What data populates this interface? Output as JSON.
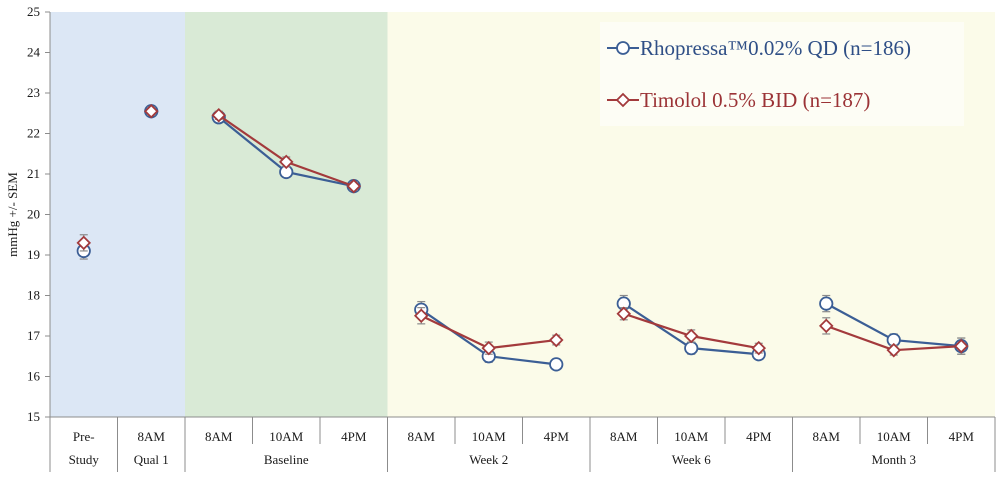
{
  "chart_data": {
    "type": "line",
    "ylabel": "mmHg +/- SEM",
    "ylim": [
      15,
      25
    ],
    "yticks": [
      15,
      16,
      17,
      18,
      19,
      20,
      21,
      22,
      23,
      24,
      25
    ],
    "categories": [
      "Pre-Study",
      "8AM",
      "8AM",
      "10AM",
      "4PM",
      "8AM",
      "10AM",
      "4PM",
      "8AM",
      "10AM",
      "4PM",
      "8AM",
      "10AM",
      "4PM"
    ],
    "tick_labels": [
      {
        "lines": [
          "Pre-",
          "Study"
        ]
      },
      {
        "lines": [
          "8AM",
          "Qual 1"
        ]
      },
      {
        "lines": [
          "8AM"
        ]
      },
      {
        "lines": [
          "10AM"
        ]
      },
      {
        "lines": [
          "4PM"
        ]
      },
      {
        "lines": [
          "8AM"
        ]
      },
      {
        "lines": [
          "10AM"
        ]
      },
      {
        "lines": [
          "4PM"
        ]
      },
      {
        "lines": [
          "8AM"
        ]
      },
      {
        "lines": [
          "10AM"
        ]
      },
      {
        "lines": [
          "4PM"
        ]
      },
      {
        "lines": [
          "8AM"
        ]
      },
      {
        "lines": [
          "10AM"
        ]
      },
      {
        "lines": [
          "4PM"
        ]
      }
    ],
    "groups": [
      {
        "label": "Baseline",
        "start": 2,
        "end": 4
      },
      {
        "label": "Week 2",
        "start": 5,
        "end": 7
      },
      {
        "label": "Week 6",
        "start": 8,
        "end": 10
      },
      {
        "label": "Month 3",
        "start": 11,
        "end": 13
      }
    ],
    "bands": [
      {
        "start": 0,
        "end": 1,
        "color": "#dce7f5"
      },
      {
        "start": 2,
        "end": 4,
        "color": "#d9ead6"
      },
      {
        "start": 5,
        "end": 13,
        "color": "#fbfbe9"
      }
    ],
    "connected_segments": [
      [
        2,
        4
      ],
      [
        5,
        7
      ],
      [
        8,
        10
      ],
      [
        11,
        13
      ]
    ],
    "series": [
      {
        "name": "Rhopressa™0.02% QD (n=186)",
        "color": "#3b5e95",
        "marker": "circle",
        "values": [
          19.1,
          22.55,
          22.4,
          21.05,
          20.7,
          17.65,
          16.5,
          16.3,
          17.8,
          16.7,
          16.55,
          17.8,
          16.9,
          16.75
        ],
        "errors": [
          0.2,
          0.1,
          0.1,
          0.12,
          0.1,
          0.2,
          0.15,
          0.12,
          0.2,
          0.15,
          0.12,
          0.2,
          0.15,
          0.2
        ]
      },
      {
        "name": "Timolol 0.5% BID (n=187)",
        "color": "#a33a3c",
        "marker": "diamond",
        "values": [
          19.3,
          22.55,
          22.45,
          21.3,
          20.7,
          17.5,
          16.7,
          16.9,
          17.55,
          17.0,
          16.7,
          17.25,
          16.65,
          16.75
        ],
        "errors": [
          0.2,
          0.1,
          0.1,
          0.12,
          0.1,
          0.2,
          0.15,
          0.12,
          0.15,
          0.15,
          0.12,
          0.2,
          0.12,
          0.2
        ]
      }
    ],
    "legend_position": "top-right",
    "grid": false
  }
}
